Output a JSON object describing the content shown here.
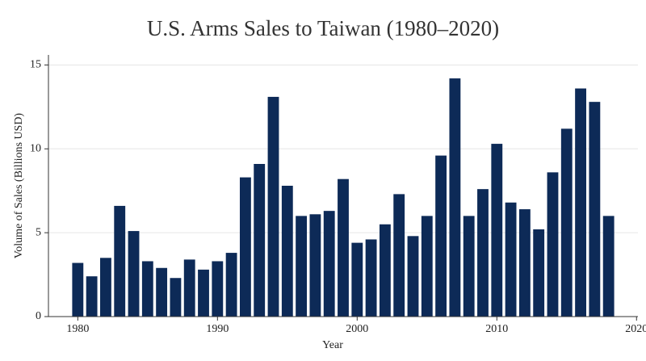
{
  "chart_data": {
    "type": "bar",
    "title": "U.S. Arms Sales to Taiwan (1980–2020)",
    "x_label": "Year",
    "y_label": "Volume of Sales (Billions USD)",
    "x": [
      1980,
      1981,
      1982,
      1983,
      1984,
      1985,
      1986,
      1987,
      1988,
      1989,
      1990,
      1991,
      1992,
      1993,
      1994,
      1995,
      1996,
      1997,
      1998,
      1999,
      2000,
      2001,
      2002,
      2003,
      2004,
      2005,
      2006,
      2007,
      2008,
      2009,
      2010,
      2011,
      2012,
      2013,
      2014,
      2015,
      2016,
      2017,
      2018
    ],
    "values": [
      3.2,
      2.4,
      3.5,
      6.6,
      5.1,
      3.3,
      2.9,
      2.3,
      3.4,
      2.8,
      3.3,
      3.8,
      8.3,
      9.1,
      13.1,
      7.8,
      6.0,
      6.1,
      6.3,
      8.2,
      4.4,
      4.6,
      5.5,
      7.3,
      4.8,
      6.0,
      9.6,
      14.2,
      6.0,
      7.6,
      10.3,
      6.8,
      6.4,
      5.2,
      8.6,
      11.2,
      13.6,
      12.8,
      6.0
    ],
    "color": "#0d2a57",
    "xlim": [
      1977.9,
      2020.1
    ],
    "xticks": [
      1980,
      1990,
      2000,
      2010,
      2020
    ],
    "ylim": [
      0,
      15.6
    ],
    "yticks": [
      0,
      5,
      10,
      15
    ],
    "grid": true
  }
}
